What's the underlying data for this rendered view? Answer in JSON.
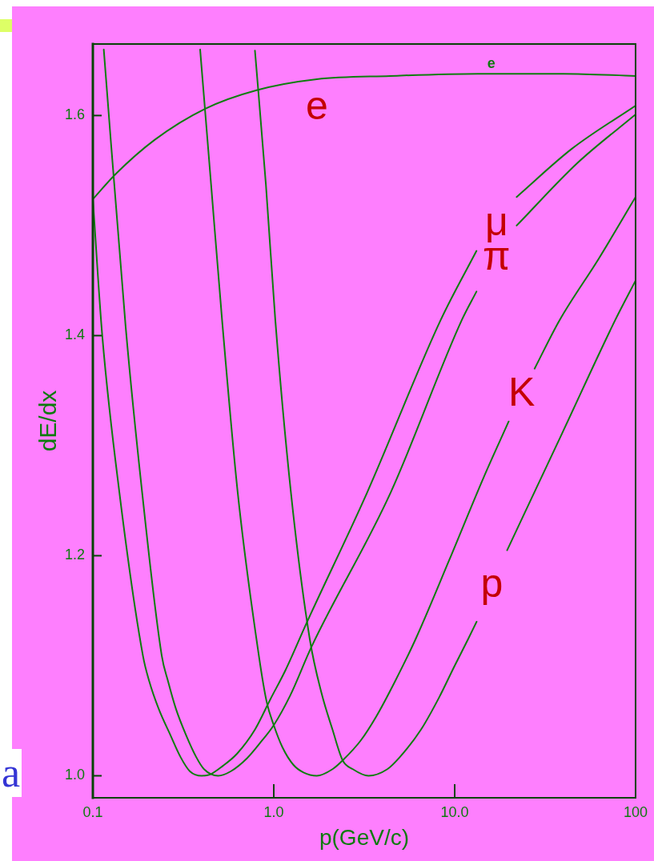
{
  "chart_data": {
    "type": "line",
    "xlabel": "p(GeV/c)",
    "ylabel": "dE/dx",
    "log": "x",
    "xlim": [
      0.1,
      100
    ],
    "ylim": [
      0.98,
      1.665
    ],
    "xticks": [
      0.1,
      {
        "value": 1,
        "label": "1.0"
      },
      {
        "value": 10,
        "label": "10.0"
      },
      100
    ],
    "yticks": [
      {
        "value": 1,
        "label": "1.0"
      },
      1.2,
      1.4,
      1.6
    ],
    "marker": "none",
    "line_style": "solid",
    "series": [
      {
        "name": "e",
        "color": "#0e7e0e",
        "x": [
          0.1,
          0.134,
          0.22,
          0.416,
          0.804,
          1.73,
          4.4,
          13.4,
          40,
          100
        ],
        "values": [
          1.524,
          1.547,
          1.578,
          1.606,
          1.623,
          1.633,
          1.636,
          1.638,
          1.638,
          1.636
        ]
      },
      {
        "name": "μ",
        "color": "#0e7e0e",
        "x": [
          0.1,
          0.1127,
          0.1403,
          0.1892,
          0.2049,
          0.231,
          0.2683,
          0.3053,
          0.3441,
          0.3997,
          0.4416,
          0.5232,
          0.626,
          0.7871,
          0.9609,
          1.161,
          1.52,
          3.274,
          8.36,
          13.2,
          17,
          22,
          44.6,
          100
        ],
        "values": [
          1.524,
          1.4,
          1.257,
          1.109,
          1.086,
          1.061,
          1.037,
          1.017,
          1.004,
          1.0,
          1.001,
          1.009,
          1.02,
          1.042,
          1.07,
          1.096,
          1.139,
          1.257,
          1.414,
          1.477,
          null,
          1.526,
          1.57,
          1.609
        ]
      },
      {
        "name": "π",
        "color": "#0e7e0e",
        "x": [
          0.1149,
          0.152,
          0.1874,
          0.2404,
          0.2603,
          0.2877,
          0.3274,
          0.3727,
          0.4118,
          0.4929,
          0.5779,
          0.7125,
          0.8612,
          1.0,
          1.233,
          1.614,
          4.416,
          10.94,
          13.2,
          17,
          22,
          47.8,
          100
        ],
        "values": [
          1.66,
          1.407,
          1.257,
          1.109,
          1.086,
          1.061,
          1.037,
          1.017,
          1.006,
          1.0,
          1.004,
          1.016,
          1.032,
          1.046,
          1.073,
          1.117,
          1.257,
          1.414,
          1.44,
          null,
          1.5,
          1.557,
          1.601
        ]
      },
      {
        "name": "K",
        "color": "#0e7e0e",
        "x": [
          0.3917,
          0.4505,
          0.518,
          0.6324,
          0.8275,
          0.9142,
          1.0,
          1.116,
          1.283,
          1.46,
          1.73,
          2.112,
          2.404,
          3.023,
          3.69,
          4.688,
          6.075,
          9.33,
          14.45,
          19.89,
          24,
          27.65,
          38,
          62.6,
          100
        ],
        "values": [
          1.66,
          1.537,
          1.414,
          1.257,
          1.109,
          1.067,
          1.046,
          1.026,
          1.01,
          1.003,
          1.0,
          1.006,
          1.014,
          1.032,
          1.054,
          1.086,
          1.124,
          1.196,
          1.271,
          1.322,
          null,
          1.37,
          1.414,
          1.47,
          1.526
        ]
      },
      {
        "name": "p",
        "color": "#0e7e0e",
        "x": [
          0.787,
          0.905,
          1.02,
          1.245,
          1.582,
          1.837,
          2.112,
          2.404,
          2.736,
          3.341,
          4.244,
          4.977,
          6.515,
          8.193,
          10.0,
          11.85,
          13.22,
          16,
          19.5,
          39.2,
          77.1,
          100
        ],
        "values": [
          1.659,
          1.537,
          1.414,
          1.257,
          1.124,
          1.075,
          1.042,
          1.014,
          1.006,
          1.0,
          1.006,
          1.017,
          1.042,
          1.071,
          1.1,
          1.124,
          1.14,
          null,
          1.205,
          1.311,
          1.414,
          1.45
        ]
      }
    ],
    "annotations": [
      "e",
      "a"
    ]
  }
}
